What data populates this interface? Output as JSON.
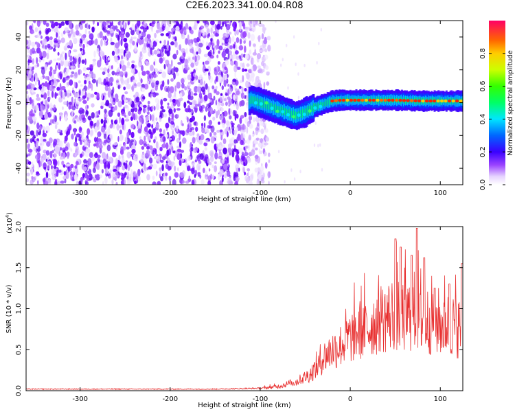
{
  "title": "C2E6.2023.341.00.04.R08",
  "chart_data": [
    {
      "type": "heatmap",
      "xlabel": "Height of straight line (km)",
      "ylabel": "Frequency (Hz)",
      "xlim": [
        -360,
        125
      ],
      "ylim": [
        -50,
        50
      ],
      "xticks": [
        -300,
        -200,
        -100,
        0,
        100
      ],
      "yticks": [
        -40,
        -20,
        0,
        20,
        40
      ],
      "colorbar": {
        "label": "Normalized spectral amplitude",
        "range": [
          0,
          1
        ],
        "ticks": [
          0.0,
          0.2,
          0.4,
          0.6,
          0.8
        ]
      },
      "ridge": {
        "x": [
          -110,
          -100,
          -90,
          -80,
          -70,
          -60,
          -50,
          -40,
          -30,
          -20,
          -10,
          0,
          20,
          50,
          80,
          100,
          125
        ],
        "y": [
          2,
          0,
          -2,
          -4,
          -6,
          -8,
          -6,
          -3,
          -1,
          1,
          1.5,
          1.5,
          1.5,
          1.5,
          1,
          1,
          1
        ]
      }
    },
    {
      "type": "line",
      "xlabel": "Height of straight line (km)",
      "ylabel": "SNR (10 * v/v)",
      "yscale_note": "(x10^4)",
      "xlim": [
        -360,
        125
      ],
      "ylim": [
        0,
        2.0
      ],
      "xticks": [
        -300,
        -200,
        -100,
        0,
        100
      ],
      "yticks": [
        0.0,
        0.5,
        1.0,
        1.5,
        2.0
      ],
      "series": [
        {
          "color": "#e83030",
          "envelope_x": [
            -360,
            -150,
            -100,
            -80,
            -60,
            -45,
            -35,
            -30,
            -20,
            -10,
            0,
            10,
            20,
            30,
            40,
            50,
            60,
            70,
            80,
            90,
            100,
            110,
            125
          ],
          "envelope_y": [
            0.02,
            0.02,
            0.03,
            0.06,
            0.12,
            0.22,
            0.35,
            0.45,
            0.55,
            0.62,
            0.72,
            0.8,
            0.85,
            0.95,
            1.0,
            1.05,
            1.0,
            1.05,
            0.95,
            0.95,
            0.9,
            0.9,
            0.85
          ],
          "peaks": [
            {
              "x": 50,
              "y": 1.85
            },
            {
              "x": 74,
              "y": 1.98
            },
            {
              "x": 56,
              "y": 1.75
            },
            {
              "x": 68,
              "y": 1.65
            },
            {
              "x": 82,
              "y": 1.62
            },
            {
              "x": 94,
              "y": 1.25
            },
            {
              "x": 110,
              "y": 1.3
            },
            {
              "x": 124,
              "y": 1.55
            }
          ]
        }
      ]
    }
  ]
}
